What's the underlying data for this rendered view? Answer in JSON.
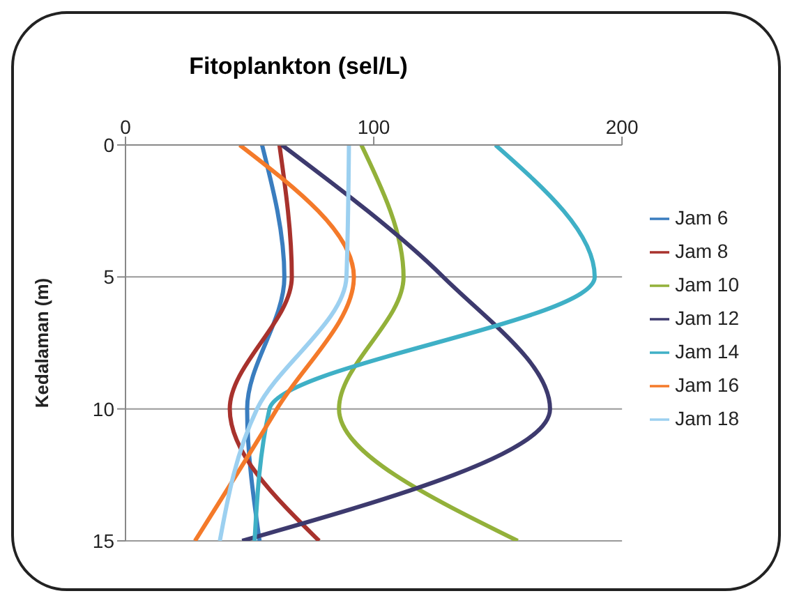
{
  "chart_data": {
    "type": "line",
    "title": "Fitoplankton (sel/L)",
    "ylabel": "Kedalaman (m)",
    "orientation": "horizontal",
    "x": [
      0,
      5,
      10,
      15
    ],
    "series": [
      {
        "name": "Jam 6",
        "color": "#3a7dbf",
        "values": [
          55,
          64,
          49,
          54
        ]
      },
      {
        "name": "Jam 8",
        "color": "#a8322d",
        "values": [
          62,
          67,
          42,
          78
        ]
      },
      {
        "name": "Jam 10",
        "color": "#93b13a",
        "values": [
          95,
          112,
          86,
          158
        ]
      },
      {
        "name": "Jam 12",
        "color": "#3d3a6e",
        "values": [
          63,
          128,
          171,
          47
        ]
      },
      {
        "name": "Jam 14",
        "color": "#3fb0c6",
        "values": [
          149,
          189,
          58,
          52
        ]
      },
      {
        "name": "Jam 16",
        "color": "#f47a2a",
        "values": [
          46,
          92,
          61,
          28
        ]
      },
      {
        "name": "Jam 18",
        "color": "#9cd0f0",
        "values": [
          90,
          89,
          53,
          38
        ]
      }
    ],
    "xlim": [
      0,
      200
    ],
    "xticks": [
      0,
      100,
      200
    ],
    "ylim": [
      15,
      0
    ],
    "yticks": [
      0,
      5,
      10,
      15
    ],
    "grid": "y",
    "legend": "right",
    "marker": "none",
    "line_style": "solid"
  }
}
